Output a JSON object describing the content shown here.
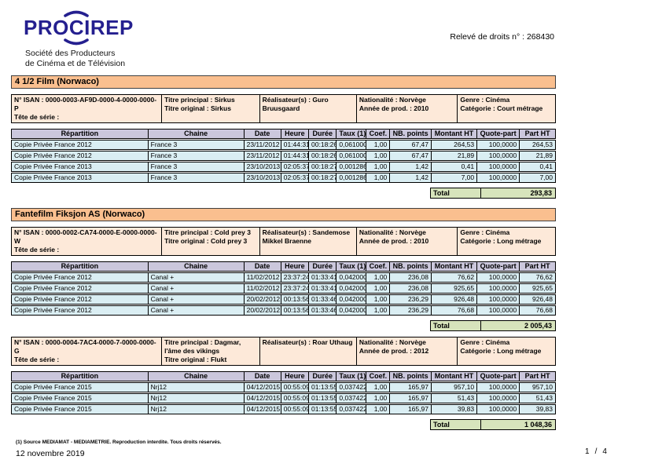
{
  "header": {
    "logo_text": "PROCIREP",
    "org_line1": "Société des Producteurs",
    "org_line2": "de Cinéma et de Télévision",
    "statement_number_label": "Relevé de droits n° : 268430"
  },
  "table_headers": [
    "Répartition",
    "Chaine",
    "Date",
    "Heure",
    "Durée",
    "Taux (1)",
    "Coef.",
    "NB. points",
    "Montant HT",
    "Quote-part",
    "Part HT"
  ],
  "total_label": "Total",
  "sections": [
    {
      "band": "4 1/2 Film (Norwaco)",
      "films": [
        {
          "info": [
            [
              "N° ISAN : 0000-0003-AF9D-0000-4-0000-0000-P",
              "Tête de série :"
            ],
            [
              "Titre principal : Sirkus",
              "Titre original : Sirkus"
            ],
            [
              "Réalisateur(s) : Guro Bruusgaard"
            ],
            [
              "Nationalité : Norvège",
              "Année de prod. : 2010"
            ],
            [
              "Genre : Cinéma",
              "Catégorie : Court métrage"
            ]
          ],
          "rows": [
            [
              "Copie Privée France 2012",
              "France 3",
              "23/11/2012",
              "01:44:31",
              "00:18:26",
              "0,061000",
              "1,00",
              "67,47",
              "264,53",
              "100,0000",
              "264,53"
            ],
            [
              "Copie Privée France 2012",
              "France 3",
              "23/11/2012",
              "01:44:31",
              "00:18:26",
              "0,061000",
              "1,00",
              "67,47",
              "21,89",
              "100,0000",
              "21,89"
            ],
            [
              "Copie Privée France 2013",
              "France 3",
              "23/10/2013",
              "02:05:37",
              "00:18:27",
              "0,001286",
              "1,00",
              "1,42",
              "0,41",
              "100,0000",
              "0,41"
            ],
            [
              "Copie Privée France 2013",
              "France 3",
              "23/10/2013",
              "02:05:37",
              "00:18:27",
              "0,001286",
              "1,00",
              "1,42",
              "7,00",
              "100,0000",
              "7,00"
            ]
          ],
          "total": "293,83"
        }
      ]
    },
    {
      "band": "Fantefilm Fiksjon AS (Norwaco)",
      "films": [
        {
          "info": [
            [
              "N° ISAN : 0000-0002-CA74-0000-E-0000-0000-W",
              "Tête de série :"
            ],
            [
              "Titre principal : Cold prey 3",
              "Titre original : Cold prey 3"
            ],
            [
              "Réalisateur(s) : Sandemose Mikkel Braenne"
            ],
            [
              "Nationalité : Norvège",
              "Année de prod. : 2010"
            ],
            [
              "Genre : Cinéma",
              "Catégorie : Long métrage"
            ]
          ],
          "rows": [
            [
              "Copie Privée France 2012",
              "Canal +",
              "11/02/2012",
              "23:37:24",
              "01:33:41",
              "0,042000",
              "1,00",
              "236,08",
              "76,62",
              "100,0000",
              "76,62"
            ],
            [
              "Copie Privée France 2012",
              "Canal +",
              "11/02/2012",
              "23:37:24",
              "01:33:41",
              "0,042000",
              "1,00",
              "236,08",
              "925,65",
              "100,0000",
              "925,65"
            ],
            [
              "Copie Privée France 2012",
              "Canal +",
              "20/02/2012",
              "00:13:56",
              "01:33:46",
              "0,042000",
              "1,00",
              "236,29",
              "926,48",
              "100,0000",
              "926,48"
            ],
            [
              "Copie Privée France 2012",
              "Canal +",
              "20/02/2012",
              "00:13:56",
              "01:33:46",
              "0,042000",
              "1,00",
              "236,29",
              "76,68",
              "100,0000",
              "76,68"
            ]
          ],
          "total": "2 005,43"
        },
        {
          "info": [
            [
              "N° ISAN : 0000-0004-7AC4-0000-7-0000-0000-G",
              "Tête de série :"
            ],
            [
              "Titre principal : Dagmar, l'âme des vikings",
              "Titre original : Flukt"
            ],
            [
              "Réalisateur(s) : Roar Uthaug"
            ],
            [
              "Nationalité : Norvège",
              "Année de prod. : 2012"
            ],
            [
              "Genre : Cinéma",
              "Catégorie : Long métrage"
            ]
          ],
          "rows": [
            [
              "Copie Privée France 2015",
              "Nrj12",
              "04/12/2015",
              "00:55:09",
              "01:13:55",
              "0,037422",
              "1,00",
              "165,97",
              "957,10",
              "100,0000",
              "957,10"
            ],
            [
              "Copie Privée France 2015",
              "Nrj12",
              "04/12/2015",
              "00:55:09",
              "01:13:55",
              "0,037422",
              "1,00",
              "165,97",
              "51,43",
              "100,0000",
              "51,43"
            ],
            [
              "Copie Privée France 2015",
              "Nrj12",
              "04/12/2015",
              "00:55:09",
              "01:13:55",
              "0,037422",
              "1,00",
              "165,97",
              "39,83",
              "100,0000",
              "39,83"
            ]
          ],
          "total": "1 048,36"
        }
      ]
    }
  ],
  "footer": {
    "note": "(1) Source MEDIAMAT - MEDIAMETRIE. Reproduction interdite. Tous droits réservés.",
    "date": "12 novembre 2019",
    "page_current": "1",
    "page_separator": "/",
    "page_total": "4"
  }
}
